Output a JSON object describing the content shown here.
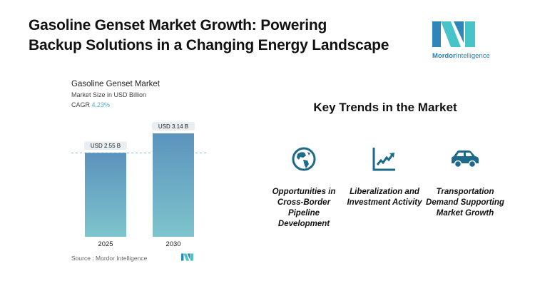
{
  "header": {
    "title_line1": "Gasoline Genset Market Growth: Powering",
    "title_line2": "Backup Solutions in a Changing Energy Landscape"
  },
  "logo": {
    "brand_part1": "Mordor",
    "brand_part2": "Intelligence"
  },
  "chart_data": {
    "type": "bar",
    "title": "Gasoline Genset Market",
    "subtitle": "Market Size in USD Billion",
    "cagr_label": "CAGR",
    "cagr_value": "4.23%",
    "categories": [
      "2025",
      "2030"
    ],
    "values": [
      2.55,
      3.14
    ],
    "data_labels": [
      "USD 2.55 B",
      "USD 3.14 B"
    ],
    "ylim": [
      0,
      3.14
    ],
    "grid": false,
    "reference_line": "dashed at 2025 value",
    "bar_color_top": "#5b93bd",
    "bar_color_bottom": "#7ec4cc",
    "source": "Source :  Mordor Intelligence"
  },
  "trends": {
    "heading": "Key Trends in the Market",
    "icon_color": "#1d6a8a",
    "items": [
      {
        "icon": "globe-icon",
        "label": "Opportunities in Cross-Border Pipeline Development"
      },
      {
        "icon": "rising-chart-icon",
        "label": "Liberalization and Investment Activity"
      },
      {
        "icon": "car-icon",
        "label": "Transportation Demand Supporting Market Growth"
      }
    ]
  }
}
